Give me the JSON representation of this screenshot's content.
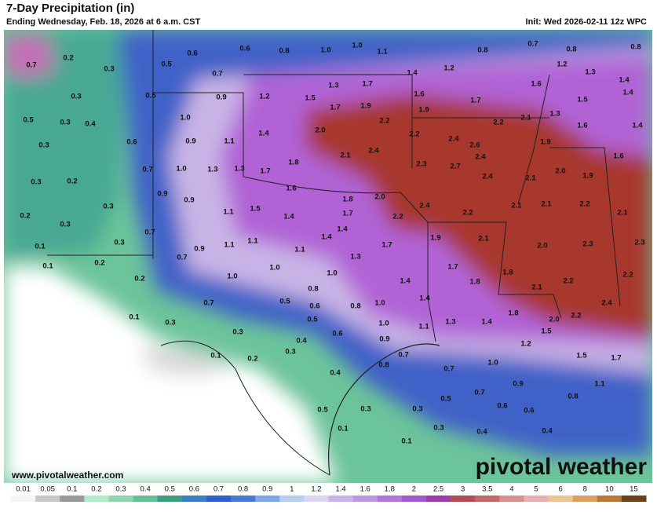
{
  "header": {
    "title": "7-Day Precipitation (in)",
    "subtitle": "Ending Wednesday, Feb. 18, 2026 at 6 a.m. CST",
    "init": "Init: Wed 2026-02-11 12z WPC"
  },
  "map": {
    "labels": [
      "0.7",
      "0.2",
      "0.3",
      "0.6",
      "0.6",
      "0.8",
      "1.0",
      "1.0",
      "1.1",
      "0.5",
      "0.7",
      "1.4",
      "1.2",
      "0.8",
      "0.7",
      "0.8",
      "0.8",
      "1.2",
      "1.3",
      "0.3",
      "1.3",
      "1.7",
      "0.5",
      "0.9",
      "1.2",
      "1.5",
      "1.7",
      "1.9",
      "1.6",
      "1.9",
      "1.7",
      "1.6",
      "1.5",
      "1.4",
      "1.4",
      "0.5",
      "0.3",
      "0.4",
      "1.0",
      "1.3",
      "2.1",
      "2.2",
      "2.2",
      "1.6",
      "1.4",
      "0.3",
      "0.6",
      "0.9",
      "1.1",
      "1.4",
      "2.0",
      "2.2",
      "2.4",
      "2.6",
      "1.9",
      "1.6",
      "2.4",
      "2.1",
      "1.8",
      "2.4",
      "2.7",
      "2.3",
      "0.3",
      "0.2",
      "0.7",
      "1.0",
      "1.3",
      "1.3",
      "1.7",
      "2.0",
      "1.9",
      "2.4",
      "2.1",
      "1.6",
      "0.9",
      "0.9",
      "1.8",
      "2.0",
      "2.4",
      "2.2",
      "2.2",
      "2.1",
      "2.1",
      "2.2",
      "2.1",
      "0.2",
      "0.3",
      "0.3",
      "1.1",
      "1.5",
      "1.4",
      "1.7",
      "1.4",
      "1.4",
      "1.9",
      "2.1",
      "0.7",
      "0.3",
      "0.9",
      "1.1",
      "1.1",
      "1.1",
      "1.7",
      "2.0",
      "2.3",
      "2.3",
      "0.1",
      "0.1",
      "0.2",
      "0.7",
      "1.3",
      "1.7",
      "1.0",
      "1.0",
      "0.2",
      "1.0",
      "1.8",
      "1.8",
      "1.4",
      "2.2",
      "2.2",
      "0.8",
      "0.7",
      "0.5",
      "0.6",
      "0.8",
      "1.0",
      "1.4",
      "2.1",
      "2.4",
      "0.1",
      "0.3",
      "0.5",
      "1.0",
      "1.3",
      "1.4",
      "1.8",
      "2.0",
      "2.2",
      "0.3",
      "0.6",
      "1.1",
      "1.5",
      "0.4",
      "0.9",
      "0.7",
      "0.3",
      "1.2",
      "0.1",
      "0.2",
      "1.5",
      "1.7",
      "0.4",
      "0.8",
      "0.7",
      "1.0",
      "0.9",
      "1.1",
      "0.5",
      "0.3",
      "0.3",
      "0.5",
      "0.7",
      "0.8",
      "0.6",
      "0.6",
      "0.1",
      "0.3",
      "0.4",
      "0.4",
      "0.1"
    ]
  },
  "footer": {
    "url": "www.pivotalweather.com",
    "logo": "pivotal weather"
  },
  "legend": {
    "labels": [
      "0.01",
      "0.05",
      "0.1",
      "0.2",
      "0.3",
      "0.4",
      "0.5",
      "0.6",
      "0.7",
      "0.8",
      "0.9",
      "1",
      "1.2",
      "1.4",
      "1.6",
      "1.8",
      "2",
      "2.5",
      "3",
      "3.5",
      "4",
      "5",
      "6",
      "8",
      "10",
      "15"
    ],
    "colors": [
      "#f4f4f4",
      "#c8c8c8",
      "#9a9a9a",
      "#b4ecc8",
      "#8fd6b0",
      "#66bf98",
      "#3e9e82",
      "#3a7fc4",
      "#2f5fcf",
      "#4a7ad8",
      "#7fa7e4",
      "#b7d0f0",
      "#dcd4f0",
      "#cdb4e8",
      "#bf96e0",
      "#b177d8",
      "#a159cf",
      "#9a3fa6",
      "#b44a5a",
      "#c26868",
      "#d69090",
      "#e6b0b0",
      "#e8c890",
      "#d9a060",
      "#b87838",
      "#6a4018"
    ]
  }
}
